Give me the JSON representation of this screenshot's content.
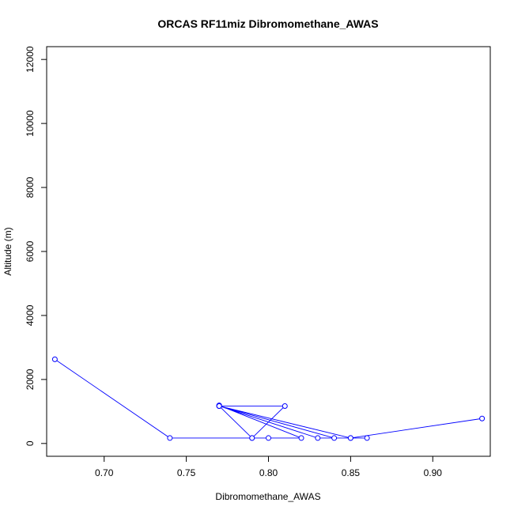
{
  "chart_data": {
    "type": "line",
    "title": "ORCAS RF11miz Dibromomethane_AWAS",
    "xlabel": "Dibromomethane_AWAS",
    "ylabel": "Altitude (m)",
    "xlim": [
      0.665,
      0.935
    ],
    "ylim": [
      -400,
      12400
    ],
    "xticks": [
      0.7,
      0.75,
      0.8,
      0.85,
      0.9
    ],
    "xtick_labels": [
      "0.70",
      "0.75",
      "0.80",
      "0.85",
      "0.90"
    ],
    "yticks": [
      0,
      2000,
      4000,
      6000,
      8000,
      10000,
      12000
    ],
    "ytick_labels": [
      "0",
      "2000",
      "4000",
      "6000",
      "8000",
      "10000",
      "12000"
    ],
    "grid": false,
    "series": [
      {
        "color": "#0000ff",
        "marker": "open-circle",
        "points": [
          {
            "x": 0.67,
            "y": 2630
          },
          {
            "x": 0.74,
            "y": 170
          },
          {
            "x": 0.79,
            "y": 170
          },
          {
            "x": 0.81,
            "y": 1170
          },
          {
            "x": 0.77,
            "y": 1170
          },
          {
            "x": 0.77,
            "y": 1190
          },
          {
            "x": 0.82,
            "y": 170
          },
          {
            "x": 0.8,
            "y": 170
          },
          {
            "x": 0.79,
            "y": 170
          },
          {
            "x": 0.77,
            "y": 1170
          },
          {
            "x": 0.84,
            "y": 170
          },
          {
            "x": 0.86,
            "y": 170
          },
          {
            "x": 0.85,
            "y": 170
          },
          {
            "x": 0.83,
            "y": 170
          },
          {
            "x": 0.77,
            "y": 1170
          },
          {
            "x": 0.85,
            "y": 170
          },
          {
            "x": 0.93,
            "y": 780
          }
        ]
      }
    ]
  }
}
